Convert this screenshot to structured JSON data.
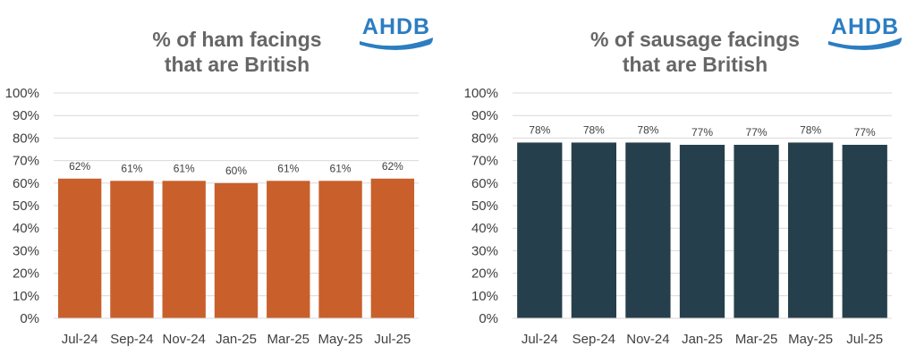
{
  "chart_data": [
    {
      "type": "bar",
      "title_line1": "% of ham facings",
      "title_line2": "that are British",
      "logo_text": "AHDB",
      "categories": [
        "Jul-24",
        "Sep-24",
        "Nov-24",
        "Jan-25",
        "Mar-25",
        "May-25",
        "Jul-25"
      ],
      "values": [
        62,
        61,
        61,
        60,
        61,
        61,
        62
      ],
      "value_labels": [
        "62%",
        "61%",
        "61%",
        "60%",
        "61%",
        "61%",
        "62%"
      ],
      "y_ticks": [
        "0%",
        "10%",
        "20%",
        "30%",
        "40%",
        "50%",
        "60%",
        "70%",
        "80%",
        "90%",
        "100%"
      ],
      "ylim": [
        0,
        100
      ],
      "grid": true,
      "bar_color": "#C9602C"
    },
    {
      "type": "bar",
      "title_line1": "% of sausage facings",
      "title_line2": "that are British",
      "logo_text": "AHDB",
      "categories": [
        "Jul-24",
        "Sep-24",
        "Nov-24",
        "Jan-25",
        "Mar-25",
        "May-25",
        "Jul-25"
      ],
      "values": [
        78,
        78,
        78,
        77,
        77,
        78,
        77
      ],
      "value_labels": [
        "78%",
        "78%",
        "78%",
        "77%",
        "77%",
        "78%",
        "77%"
      ],
      "y_ticks": [
        "0%",
        "10%",
        "20%",
        "30%",
        "40%",
        "50%",
        "60%",
        "70%",
        "80%",
        "90%",
        "100%"
      ],
      "ylim": [
        0,
        100
      ],
      "grid": true,
      "bar_color": "#263F4C"
    }
  ],
  "colors": {
    "logo_blue": "#2C7DC1",
    "text_grey": "#666666",
    "grid": "#D9D9D9"
  }
}
